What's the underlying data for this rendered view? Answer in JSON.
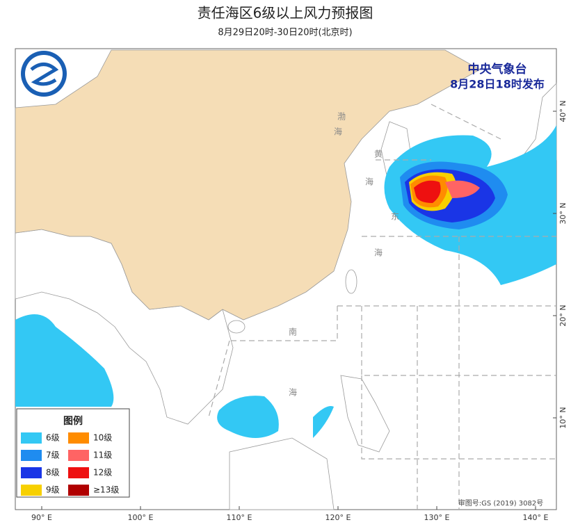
{
  "header": {
    "title": "责任海区6级以上风力预报图",
    "subtitle": "8月29日20时-30日20时(北京时)"
  },
  "issuer": {
    "agency": "中央气象台",
    "issued": "8月28日18时发布"
  },
  "legend": {
    "title": "图例",
    "items": [
      {
        "label": "6级",
        "color": "#33c8f4"
      },
      {
        "label": "7级",
        "color": "#1f8cf0"
      },
      {
        "label": "8级",
        "color": "#1a35e6"
      },
      {
        "label": "9级",
        "color": "#f7d000"
      },
      {
        "label": "10级",
        "color": "#ff8c00"
      },
      {
        "label": "11级",
        "color": "#ff6464"
      },
      {
        "label": "12级",
        "color": "#ee1010"
      },
      {
        "label": "≥13级",
        "color": "#b00000"
      }
    ]
  },
  "longitude_labels": [
    "90° E",
    "100° E",
    "110° E",
    "120° E",
    "130° E",
    "140° E"
  ],
  "latitude_labels": [
    "40° N",
    "30° N",
    "20° N",
    "10° N"
  ],
  "sea_labels": [
    "渤",
    "海",
    "黄",
    "海",
    "东",
    "海",
    "南",
    "海"
  ],
  "footer": "审图号:GS (2019) 3082号"
}
